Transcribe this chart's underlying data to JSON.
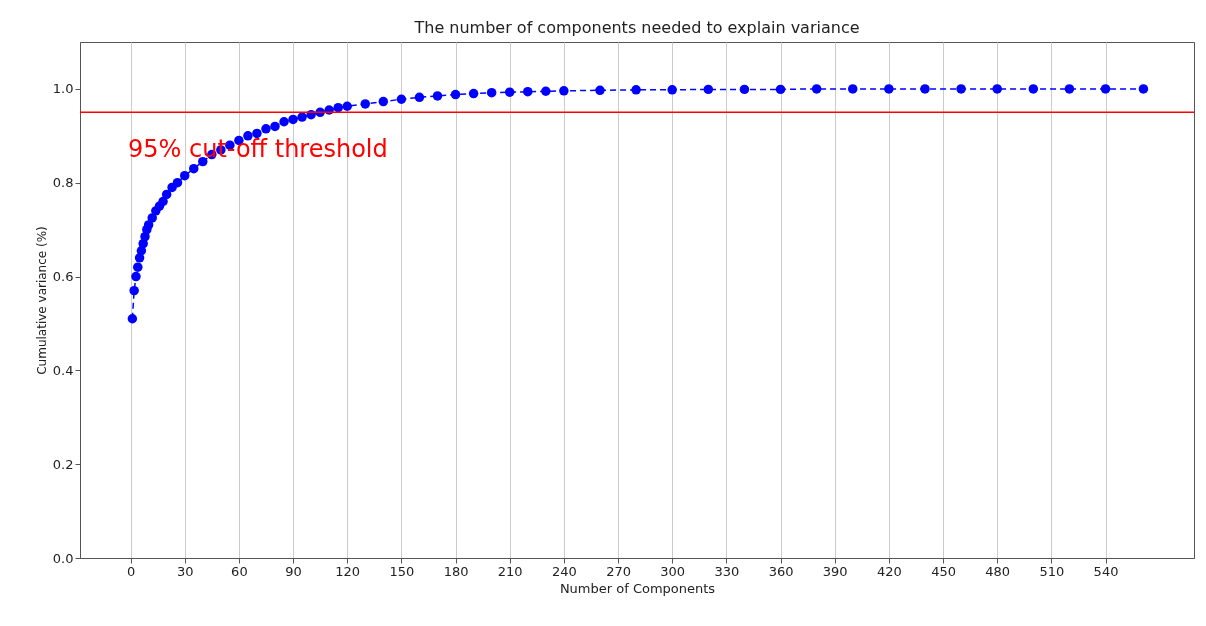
{
  "chart_data": {
    "type": "line",
    "title": "The number of components needed to explain variance",
    "xlabel": "Number of Components",
    "ylabel": "Cumulative variance (%)",
    "x": [
      1,
      2,
      3,
      4,
      5,
      6,
      7,
      8,
      9,
      10,
      12,
      14,
      16,
      18,
      20,
      23,
      26,
      30,
      35,
      40,
      45,
      50,
      55,
      60,
      65,
      70,
      75,
      80,
      85,
      90,
      95,
      100,
      105,
      110,
      115,
      120,
      130,
      140,
      150,
      160,
      170,
      180,
      190,
      200,
      210,
      220,
      230,
      240,
      260,
      280,
      300,
      320,
      340,
      360,
      380,
      400,
      420,
      440,
      460,
      480,
      500,
      520,
      540,
      561
    ],
    "series": [
      {
        "color": "#0000ff",
        "values": [
          0.51,
          0.57,
          0.6,
          0.62,
          0.64,
          0.655,
          0.67,
          0.685,
          0.7,
          0.71,
          0.725,
          0.74,
          0.75,
          0.76,
          0.775,
          0.79,
          0.8,
          0.815,
          0.83,
          0.845,
          0.86,
          0.87,
          0.88,
          0.89,
          0.9,
          0.905,
          0.915,
          0.92,
          0.93,
          0.935,
          0.94,
          0.945,
          0.95,
          0.955,
          0.96,
          0.963,
          0.968,
          0.973,
          0.978,
          0.982,
          0.985,
          0.988,
          0.99,
          0.992,
          0.993,
          0.994,
          0.995,
          0.996,
          0.997,
          0.998,
          0.998,
          0.999,
          0.999,
          0.999,
          1.0,
          1.0,
          1.0,
          1.0,
          1.0,
          1.0,
          1.0,
          1.0,
          1.0,
          1.0
        ]
      }
    ],
    "xlim": [
      -28,
      589
    ],
    "xticks": [
      0,
      30,
      60,
      90,
      120,
      150,
      180,
      210,
      240,
      270,
      300,
      330,
      360,
      390,
      420,
      450,
      480,
      510,
      540
    ],
    "ylim": [
      0,
      1.1
    ],
    "yticks": [
      {
        "value": 0,
        "label": "0.0"
      },
      0.2,
      0.4,
      0.6,
      0.8,
      {
        "value": 1,
        "label": "1.0"
      }
    ],
    "ref_lines": [
      {
        "axis": "y",
        "value": 0.95,
        "label": "95% cut-off threshold",
        "color": "#ff0000"
      }
    ],
    "grid": "x",
    "marker": "circle",
    "line_style": "dashed"
  }
}
